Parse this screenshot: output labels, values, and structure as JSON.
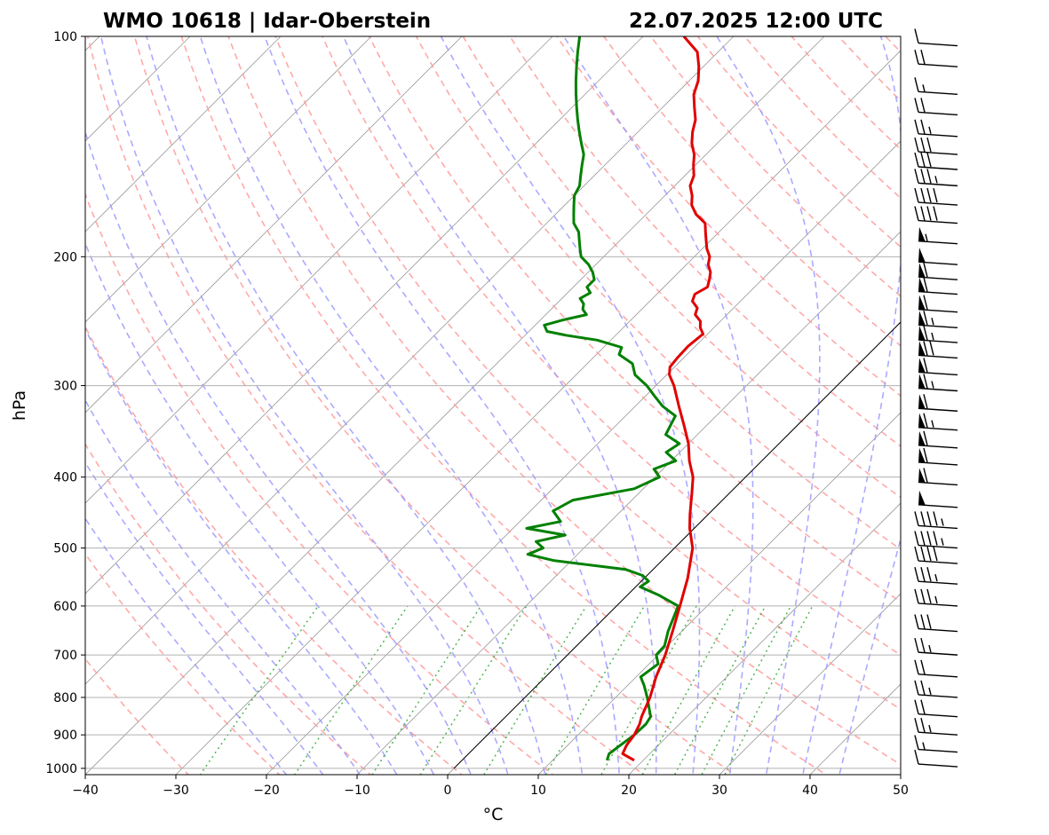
{
  "title_left": "WMO 10618 | Idar-Oberstein",
  "title_right": "22.07.2025 12:00 UTC",
  "chart_data": {
    "type": "skew-t",
    "xlabel": "°C",
    "ylabel": "hPa",
    "xlim": [
      -40,
      50
    ],
    "ylim": [
      1020,
      100
    ],
    "y_scale": "log",
    "x_ticks": [
      -40,
      -30,
      -20,
      -10,
      0,
      10,
      20,
      30,
      40,
      50
    ],
    "y_ticks": [
      1000,
      900,
      800,
      700,
      600,
      500,
      400,
      300,
      200,
      100
    ],
    "grid": true,
    "skew_degrees": 45,
    "temperature": {
      "color": "#e00000",
      "p": [
        975,
        955,
        930,
        900,
        870,
        850,
        800,
        750,
        700,
        650,
        600,
        550,
        500,
        470,
        450,
        420,
        400,
        380,
        360,
        340,
        320,
        300,
        290,
        283,
        275,
        265,
        255,
        250,
        245,
        240,
        235,
        230,
        225,
        220,
        215,
        210,
        205,
        200,
        195,
        190,
        185,
        180,
        175,
        170,
        165,
        160,
        155,
        150,
        145,
        140,
        135,
        130,
        125,
        120,
        115,
        110,
        105,
        100
      ],
      "t": [
        19.0,
        17.0,
        16.5,
        16.2,
        15.6,
        15.0,
        13.8,
        12.2,
        10.8,
        9.0,
        7.0,
        4.8,
        2.0,
        -0.5,
        -2.0,
        -4.2,
        -5.8,
        -8.0,
        -10.0,
        -12.5,
        -15.2,
        -18.0,
        -19.7,
        -20.5,
        -20.7,
        -20.8,
        -20.5,
        -21.5,
        -22.2,
        -23.5,
        -24.0,
        -25.3,
        -25.8,
        -25.2,
        -25.8,
        -26.5,
        -27.6,
        -28.3,
        -29.5,
        -30.5,
        -31.5,
        -32.5,
        -34.5,
        -36.0,
        -37.0,
        -38.3,
        -39.0,
        -40.2,
        -41.3,
        -42.8,
        -44.0,
        -45.0,
        -46.5,
        -48.0,
        -49.0,
        -50.5,
        -52.3,
        -55.5
      ]
    },
    "dewpoint": {
      "color": "#008000",
      "p": [
        975,
        955,
        930,
        900,
        870,
        850,
        800,
        770,
        750,
        720,
        700,
        680,
        650,
        620,
        600,
        580,
        565,
        555,
        545,
        535,
        520,
        510,
        500,
        490,
        480,
        470,
        460,
        445,
        430,
        415,
        400,
        390,
        380,
        370,
        360,
        350,
        340,
        330,
        320,
        310,
        300,
        290,
        280,
        272,
        266,
        260,
        256,
        253,
        248,
        244,
        240,
        236,
        232,
        228,
        224,
        220,
        215,
        210,
        205,
        200,
        195,
        190,
        185,
        180,
        175,
        170,
        165,
        160,
        155,
        150,
        145,
        140,
        135,
        130,
        125,
        120,
        115,
        110,
        105,
        100
      ],
      "t": [
        16.0,
        15.5,
        15.8,
        16.2,
        16.3,
        16.0,
        13.5,
        11.8,
        10.5,
        11.0,
        9.8,
        9.7,
        8.5,
        7.5,
        6.8,
        3.5,
        0.5,
        0.8,
        -0.5,
        -3.0,
        -12.0,
        -15.5,
        -14.5,
        -16.0,
        -13.5,
        -18.5,
        -15.5,
        -17.5,
        -16.5,
        -11.0,
        -9.5,
        -11.0,
        -9.5,
        -11.5,
        -11.0,
        -13.5,
        -14.0,
        -14.5,
        -17.0,
        -19.0,
        -21.0,
        -23.5,
        -25.0,
        -27.5,
        -28.0,
        -31.5,
        -35.5,
        -38.0,
        -39.0,
        -37.5,
        -35.5,
        -36.5,
        -37.0,
        -38.0,
        -37.5,
        -38.5,
        -38.5,
        -39.5,
        -40.8,
        -42.5,
        -43.5,
        -44.5,
        -45.5,
        -47.0,
        -48.0,
        -49.0,
        -50.0,
        -50.5,
        -51.5,
        -52.5,
        -53.5,
        -55.0,
        -56.5,
        -58.0,
        -59.5,
        -61.0,
        -62.5,
        -64.0,
        -65.5,
        -67.0
      ]
    },
    "parcel_line": {
      "color": "#000000",
      "start_p": 1000,
      "start_t": 0
    },
    "wind_barbs_kt": [
      {
        "p": 995,
        "speed": 10
      },
      {
        "p": 950,
        "speed": 15
      },
      {
        "p": 900,
        "speed": 25
      },
      {
        "p": 850,
        "speed": 20
      },
      {
        "p": 800,
        "speed": 25
      },
      {
        "p": 750,
        "speed": 20
      },
      {
        "p": 700,
        "speed": 25
      },
      {
        "p": 650,
        "speed": 30
      },
      {
        "p": 600,
        "speed": 35
      },
      {
        "p": 560,
        "speed": 35
      },
      {
        "p": 525,
        "speed": 40
      },
      {
        "p": 500,
        "speed": 45
      },
      {
        "p": 470,
        "speed": 45
      },
      {
        "p": 440,
        "speed": 50
      },
      {
        "p": 410,
        "speed": 60
      },
      {
        "p": 385,
        "speed": 60
      },
      {
        "p": 365,
        "speed": 60
      },
      {
        "p": 345,
        "speed": 65
      },
      {
        "p": 325,
        "speed": 60
      },
      {
        "p": 305,
        "speed": 65
      },
      {
        "p": 290,
        "speed": 60
      },
      {
        "p": 275,
        "speed": 70
      },
      {
        "p": 262,
        "speed": 65
      },
      {
        "p": 250,
        "speed": 65
      },
      {
        "p": 238,
        "speed": 60
      },
      {
        "p": 225,
        "speed": 60
      },
      {
        "p": 215,
        "speed": 60
      },
      {
        "p": 205,
        "speed": 50
      },
      {
        "p": 192,
        "speed": 55
      },
      {
        "p": 180,
        "speed": 40
      },
      {
        "p": 170,
        "speed": 40
      },
      {
        "p": 160,
        "speed": 35
      },
      {
        "p": 152,
        "speed": 30
      },
      {
        "p": 145,
        "speed": 30
      },
      {
        "p": 137,
        "speed": 25
      },
      {
        "p": 128,
        "speed": 20
      },
      {
        "p": 120,
        "speed": 15
      },
      {
        "p": 110,
        "speed": 20
      },
      {
        "p": 103,
        "speed": 10
      }
    ]
  }
}
